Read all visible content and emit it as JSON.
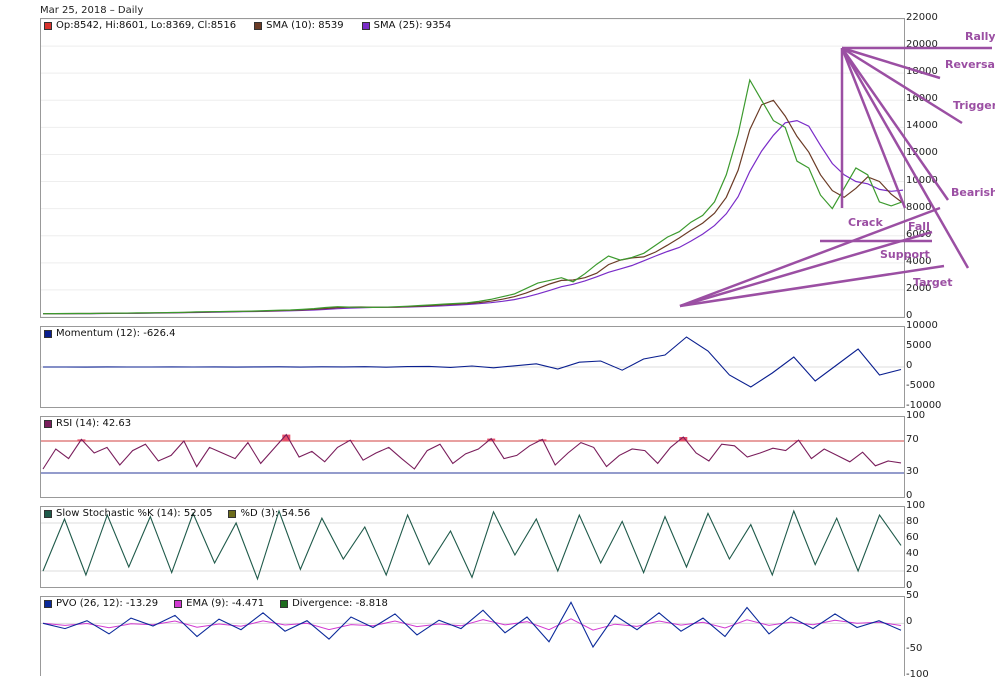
{
  "header": {
    "date": "Mar 25, 2018 – Daily"
  },
  "chart_data": [
    {
      "type": "line",
      "panel": "price",
      "legend": [
        {
          "label": "Op:8542, Hi:8601, Lo:8369, Cl:8516",
          "color": "#d8332d"
        },
        {
          "label": "SMA (10): 8539",
          "color": "#6b3b26"
        },
        {
          "label": "SMA (25): 9354",
          "color": "#7a2cc8"
        }
      ],
      "ylim": [
        0,
        22000
      ],
      "yticks": [
        "22000",
        "20000",
        "18000",
        "16000",
        "14000",
        "12000",
        "10000",
        "8000",
        "6000",
        "4000",
        "2000",
        "0"
      ],
      "series": [
        {
          "name": "Close",
          "values": [
            240,
            250,
            260,
            255,
            262,
            270,
            280,
            290,
            300,
            305,
            315,
            330,
            350,
            375,
            390,
            400,
            410,
            420,
            440,
            470,
            500,
            520,
            560,
            620,
            700,
            760,
            730,
            720,
            710,
            720,
            760,
            800,
            850,
            900,
            950,
            1000,
            1050,
            1150,
            1300,
            1500,
            1700,
            2100,
            2500,
            2700,
            2900,
            2600,
            3200,
            3900,
            4500,
            4200,
            4400,
            4700,
            5300,
            5900,
            6300,
            7000,
            7500,
            8500,
            10500,
            13500,
            17500,
            16000,
            14500,
            14000,
            11500,
            11000,
            9000,
            8000,
            9500,
            11000,
            10500,
            8500,
            8200,
            8516
          ]
        }
      ],
      "annotations": [
        "Rally",
        "Reversal",
        "Trigger",
        "Bearish",
        "Crack",
        "Fall",
        "Support",
        "Target"
      ]
    },
    {
      "type": "line",
      "panel": "momentum",
      "legend": [
        {
          "label": "Momentum (12): -626.4",
          "color": "#0a1f8f"
        }
      ],
      "ylim": [
        -10000,
        10000
      ],
      "yticks": [
        "10000",
        "5000",
        "0",
        "-5000",
        "-10000"
      ],
      "series": [
        {
          "name": "Momentum (12)",
          "values": [
            0,
            10,
            -20,
            15,
            5,
            -10,
            20,
            0,
            30,
            -15,
            25,
            40,
            -30,
            60,
            20,
            80,
            -40,
            100,
            150,
            -100,
            250,
            -200,
            300,
            800,
            -500,
            1200,
            1500,
            -800,
            2000,
            3000,
            7500,
            4000,
            -2000,
            -5000,
            -1500,
            2500,
            -3500,
            500,
            4500,
            -2000,
            -626
          ]
        }
      ]
    },
    {
      "type": "line",
      "panel": "rsi",
      "legend": [
        {
          "label": "RSI (14): 42.63",
          "color": "#7a1e5c"
        }
      ],
      "ylim": [
        0,
        100
      ],
      "yticks": [
        "100",
        "70",
        "30",
        "0"
      ],
      "series": [
        {
          "name": "RSI (14)",
          "values": [
            35,
            60,
            48,
            72,
            55,
            62,
            40,
            58,
            66,
            45,
            52,
            70,
            38,
            62,
            55,
            48,
            68,
            42,
            60,
            78,
            50,
            57,
            44,
            62,
            71,
            46,
            55,
            62,
            48,
            35,
            58,
            66,
            42,
            54,
            60,
            73,
            48,
            52,
            64,
            72,
            40,
            55,
            68,
            62,
            38,
            52,
            60,
            58,
            42,
            62,
            75,
            55,
            45,
            66,
            64,
            50,
            55,
            61,
            58,
            71,
            48,
            60,
            52,
            44,
            56,
            39,
            45,
            42.63
          ]
        }
      ]
    },
    {
      "type": "line",
      "panel": "stochastic",
      "legend": [
        {
          "label": "Slow Stochastic %K (14): 52.05",
          "color": "#1f5a4a"
        },
        {
          "label": "%D (3): 54.56",
          "color": "#6b6b1a"
        }
      ],
      "ylim": [
        0,
        100
      ],
      "yticks": [
        "100",
        "80",
        "60",
        "40",
        "20",
        "0"
      ],
      "series": [
        {
          "name": "Slow Stochastic %K (14)",
          "values": [
            20,
            85,
            15,
            90,
            25,
            88,
            18,
            92,
            30,
            80,
            10,
            95,
            22,
            86,
            35,
            75,
            15,
            90,
            28,
            70,
            12,
            94,
            40,
            85,
            20,
            90,
            30,
            82,
            18,
            88,
            25,
            92,
            35,
            78,
            15,
            95,
            28,
            86,
            20,
            90,
            52.05
          ]
        }
      ]
    },
    {
      "type": "line",
      "panel": "pvo",
      "legend": [
        {
          "label": "PVO (26, 12): -13.29",
          "color": "#0b2a9a"
        },
        {
          "label": "EMA (9): -4.471",
          "color": "#d13ad1"
        },
        {
          "label": "Divergence: -8.818",
          "color": "#1d6b1d"
        }
      ],
      "ylim": [
        -100,
        50
      ],
      "yticks": [
        "50",
        "0",
        "-50",
        "-100"
      ],
      "series": [
        {
          "name": "PVO (26, 12)",
          "values": [
            0,
            -10,
            5,
            -20,
            10,
            -5,
            15,
            -25,
            8,
            -12,
            20,
            -15,
            5,
            -30,
            12,
            -8,
            18,
            -22,
            6,
            -10,
            25,
            -18,
            12,
            -35,
            40,
            -45,
            15,
            -12,
            20,
            -15,
            10,
            -25,
            30,
            -20,
            12,
            -10,
            18,
            -8,
            5,
            -13.29
          ]
        }
      ]
    }
  ]
}
